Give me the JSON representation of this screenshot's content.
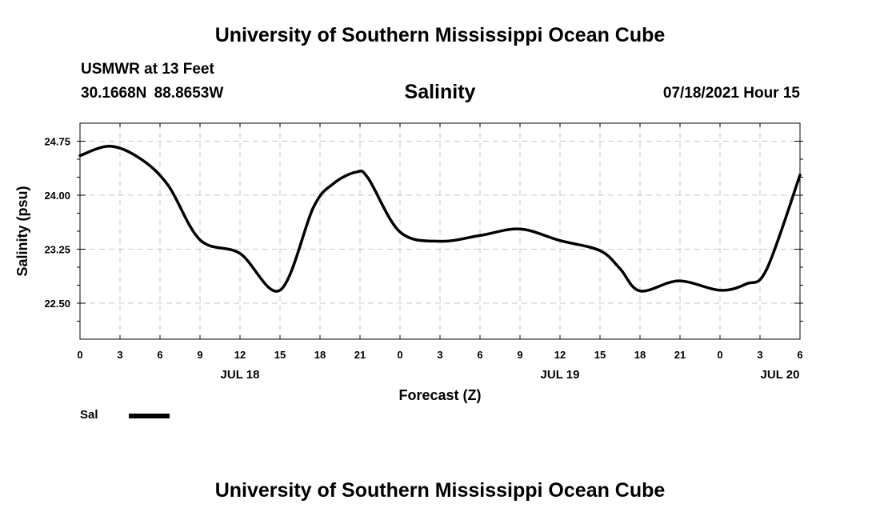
{
  "header": {
    "title": "University of Southern Mississippi Ocean Cube",
    "station": "USMWR at 13 Feet",
    "coordinates": "30.1668N  88.8653W",
    "plot_title": "Salinity",
    "datetime": "07/18/2021 Hour 15"
  },
  "footer": {
    "title": "University of Southern Mississippi Ocean Cube"
  },
  "legend": {
    "label": "Sal"
  },
  "colors": {
    "line": "#000000",
    "grid": "#c8c8c8",
    "background": "#ffffff"
  },
  "chart_data": {
    "type": "line",
    "title": "Salinity",
    "xlabel": "Forecast (Z)",
    "ylabel": "Salinity (psu)",
    "xlim": [
      0,
      54
    ],
    "ylim": [
      22.0,
      25.0
    ],
    "x_ticks": [
      0,
      3,
      6,
      9,
      12,
      15,
      18,
      21,
      24,
      27,
      30,
      33,
      36,
      39,
      42,
      45,
      48,
      51,
      54
    ],
    "x_tick_labels": [
      "0",
      "3",
      "6",
      "9",
      "12",
      "15",
      "18",
      "21",
      "0",
      "3",
      "6",
      "9",
      "12",
      "15",
      "18",
      "21",
      "0",
      "3",
      "6"
    ],
    "date_labels": [
      {
        "x": 12,
        "label": "JUL 18"
      },
      {
        "x": 36,
        "label": "JUL 19"
      },
      {
        "x": 52.5,
        "label": "JUL 20"
      }
    ],
    "y_ticks": [
      22.5,
      23.25,
      24.0,
      24.75
    ],
    "y_tick_labels": [
      "22.50",
      "23.25",
      "24.00",
      "24.75"
    ],
    "y_minor_ticks": [
      22.25,
      22.5,
      22.75,
      23.0,
      23.25,
      23.5,
      23.75,
      24.0,
      24.25,
      24.5,
      24.75
    ],
    "grid": true,
    "series": [
      {
        "name": "Sal",
        "x": [
          0,
          2.25,
          4.5,
          6.6,
          9,
          12,
          15,
          17.5,
          19,
          20.7,
          21.6,
          24,
          27,
          30,
          33,
          36,
          39,
          40.5,
          42,
          44.9,
          48,
          50,
          51.5,
          54
        ],
        "y": [
          24.55,
          24.68,
          24.51,
          24.14,
          23.38,
          23.19,
          22.68,
          23.83,
          24.16,
          24.32,
          24.24,
          23.49,
          23.36,
          23.44,
          23.53,
          23.37,
          23.23,
          22.98,
          22.67,
          22.81,
          22.68,
          22.77,
          22.97,
          24.28
        ]
      }
    ]
  }
}
